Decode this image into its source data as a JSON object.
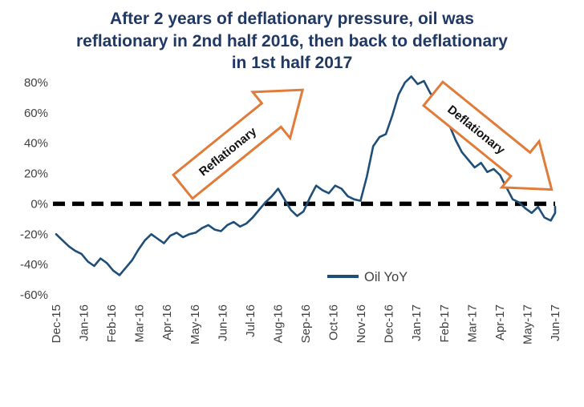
{
  "title": "After 2 years of deflationary pressure, oil was reflationary in 2nd half 2016, then back to deflationary in 1st half 2017",
  "colors": {
    "title_text": "#1F3864",
    "line": "#1F4E79",
    "arrow_outline": "#E07B39",
    "axis_text": "#404040",
    "zero_line": "#000000"
  },
  "legend": {
    "label": "Oil YoY"
  },
  "annotations": [
    {
      "label": "Reflationary",
      "direction": "up-right"
    },
    {
      "label": "Deflationary",
      "direction": "down-right"
    }
  ],
  "chart_data": {
    "type": "line",
    "title": "After 2 years of deflationary pressure, oil was reflationary in 2nd half 2016, then back to deflationary in 1st half 2017",
    "categories": [
      "Dec-15",
      "Jan-16",
      "Feb-16",
      "Mar-16",
      "Apr-16",
      "May-16",
      "Jun-16",
      "Jul-16",
      "Aug-16",
      "Sep-16",
      "Oct-16",
      "Nov-16",
      "Dec-16",
      "Jan-17",
      "Feb-17",
      "Mar-17",
      "Apr-17",
      "May-17",
      "Jun-17"
    ],
    "series": [
      {
        "name": "Oil YoY",
        "color": "#1F4E79",
        "values": [
          -20,
          -24,
          -28,
          -31,
          -33,
          -38,
          -41,
          -36,
          -39,
          -44,
          -47,
          -42,
          -37,
          -30,
          -24,
          -20,
          -23,
          -26,
          -21,
          -19,
          -22,
          -20,
          -19,
          -16,
          -14,
          -17,
          -18,
          -14,
          -12,
          -15,
          -13,
          -9,
          -4,
          1,
          5,
          10,
          3,
          -4,
          -8,
          -5,
          4,
          12,
          9,
          7,
          12,
          10,
          5,
          3,
          2,
          18,
          38,
          44,
          46,
          58,
          72,
          80,
          84,
          79,
          81,
          73,
          68,
          62,
          52,
          42,
          34,
          29,
          24,
          27,
          21,
          23,
          19,
          11,
          3,
          1,
          -3,
          -6,
          -2,
          -9,
          -11,
          -6,
          -2
        ]
      }
    ],
    "x_span_months": [
      0,
      18.3
    ],
    "xlabel": "",
    "ylabel": "",
    "ylim": [
      -60,
      80
    ],
    "y_ticks": [
      80,
      60,
      40,
      20,
      0,
      -20,
      -40,
      -60
    ],
    "y_tick_format": "percent",
    "grid": false,
    "legend_position": "bottom-center",
    "zero_line": {
      "style": "dashed",
      "color": "#000000",
      "width": 5.5
    }
  }
}
